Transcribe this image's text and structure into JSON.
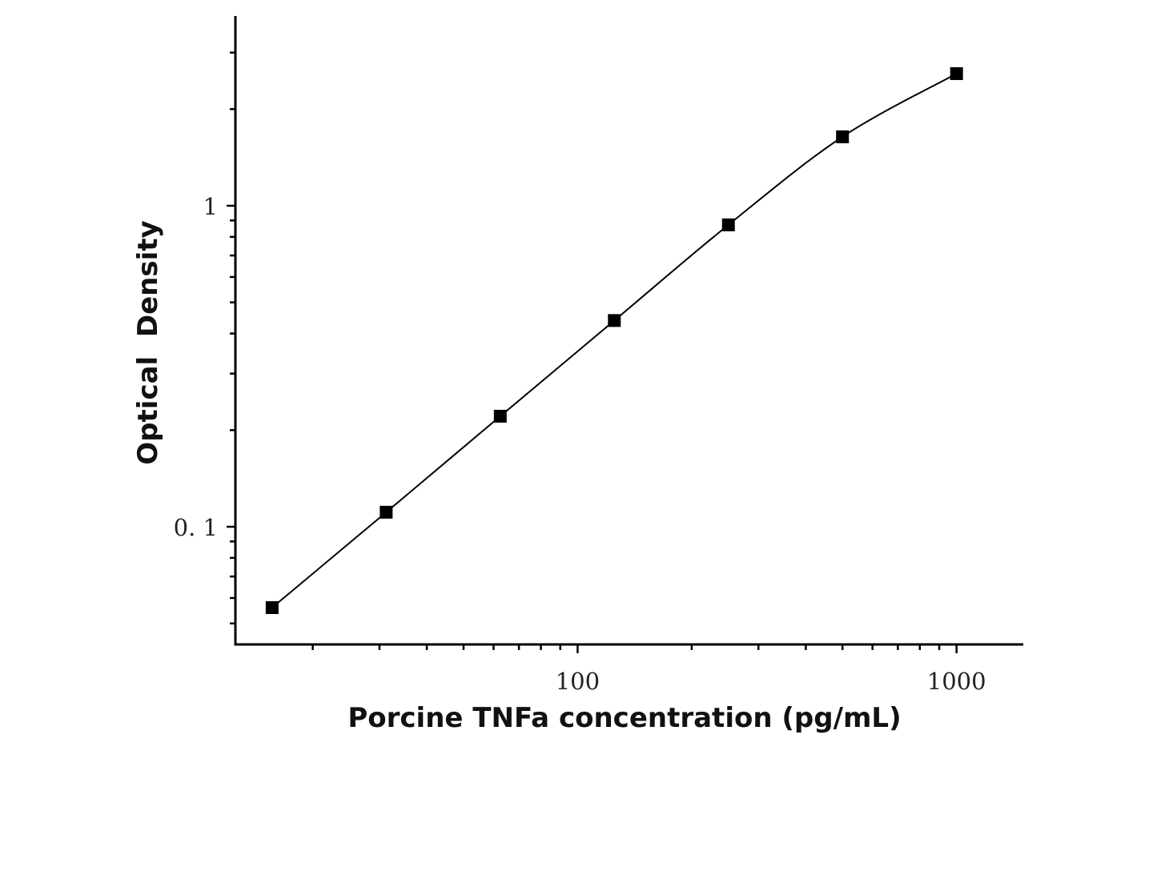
{
  "chart_data": {
    "type": "scatter",
    "title": "",
    "xlabel": "Porcine TNFa concentration (pg/mL)",
    "ylabel": "Optical  Density",
    "xscale": "log",
    "yscale": "log",
    "xlim": [
      12.5,
      1500
    ],
    "ylim": [
      0.043,
      3.9
    ],
    "grid": false,
    "x_tick_labels": [
      {
        "value": 100,
        "label": "100"
      },
      {
        "value": 1000,
        "label": "1000"
      }
    ],
    "y_tick_labels": [
      {
        "value": 0.1,
        "label": "0. 1"
      },
      {
        "value": 1,
        "label": "1"
      }
    ],
    "series": [
      {
        "marker": "square",
        "color": "#000000",
        "curve": "smooth fitted line through points",
        "x": [
          15.625,
          31.25,
          62.5,
          125,
          250,
          500,
          1000
        ],
        "y": [
          0.056,
          0.111,
          0.221,
          0.439,
          0.872,
          1.64,
          2.58
        ]
      }
    ]
  }
}
